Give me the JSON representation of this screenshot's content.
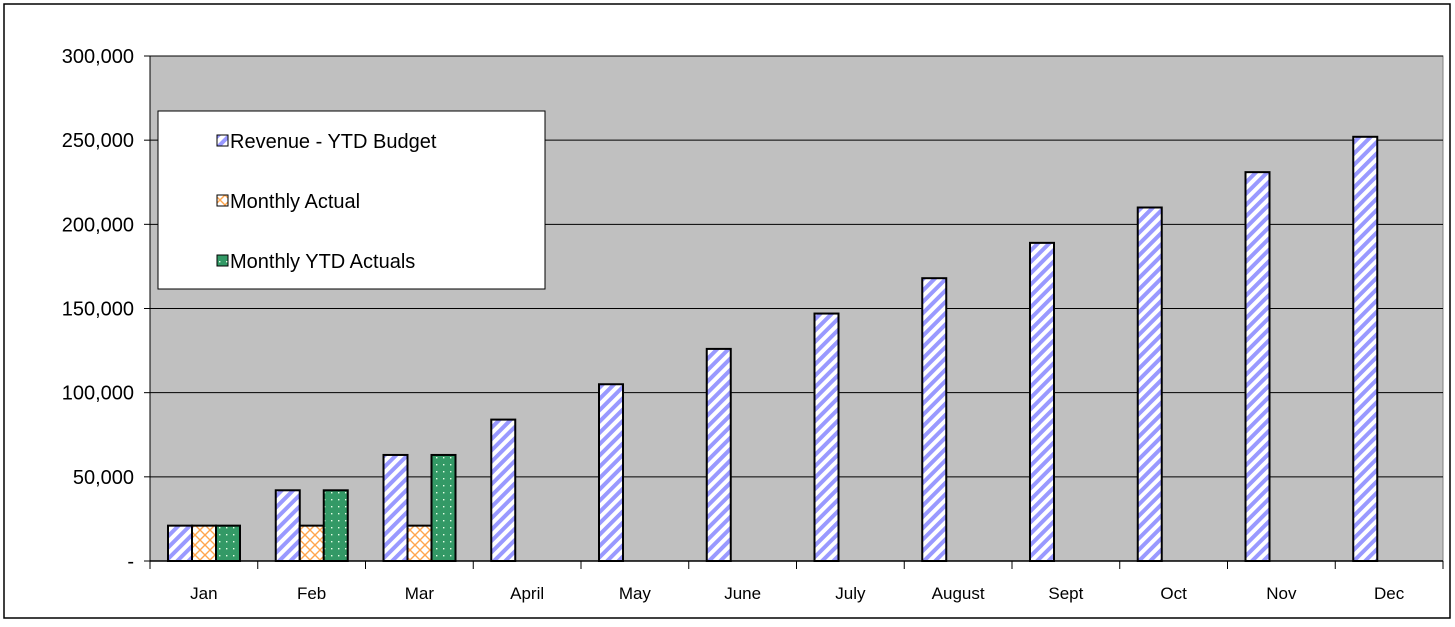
{
  "chart_data": {
    "type": "bar",
    "categories": [
      "Jan",
      "Feb",
      "Mar",
      "April",
      "May",
      "June",
      "July",
      "August",
      "Sept",
      "Oct",
      "Nov",
      "Dec"
    ],
    "series": [
      {
        "name": "Revenue -  YTD Budget",
        "values": [
          21000,
          42000,
          63000,
          84000,
          105000,
          126000,
          147000,
          168000,
          189000,
          210000,
          231000,
          252000
        ],
        "fill": "#9999ff",
        "pattern": "diagonal-stripes"
      },
      {
        "name": "Monthly  Actual",
        "values": [
          21000,
          21000,
          21000,
          null,
          null,
          null,
          null,
          null,
          null,
          null,
          null,
          null
        ],
        "fill": "#ffcc99",
        "pattern": "cross-hatch"
      },
      {
        "name": "Monthly YTD Actuals",
        "values": [
          21000,
          42000,
          63000,
          null,
          null,
          null,
          null,
          null,
          null,
          null,
          null,
          null
        ],
        "fill": "#339966",
        "pattern": "dots"
      }
    ],
    "ylim": [
      0,
      300000
    ],
    "yticks": [
      0,
      50000,
      100000,
      150000,
      200000,
      250000,
      300000
    ],
    "ytick_labels": [
      "-",
      "50,000",
      "100,000",
      "150,000",
      "200,000",
      "250,000",
      "300,000"
    ],
    "grid": "horizontal",
    "legend_position": "top-left",
    "plot_background": "#c0c0c0"
  }
}
